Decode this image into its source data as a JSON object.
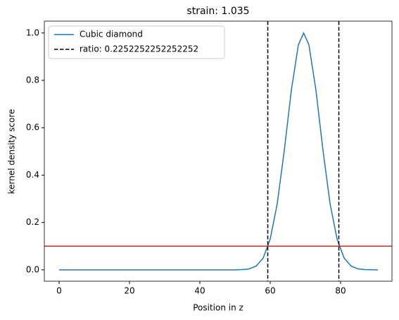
{
  "chart_data": {
    "type": "line",
    "title": "strain: 1.035",
    "x_label": "Position in z",
    "y_label": "kernel density score",
    "x": [
      0,
      10,
      20,
      30,
      40,
      45,
      50,
      52,
      54,
      56,
      58,
      60,
      62,
      64,
      66,
      68,
      69.5,
      71,
      73,
      75,
      77,
      79,
      81,
      83,
      85,
      87,
      90.6
    ],
    "series": [
      {
        "name": "Cubic diamond",
        "color": "#1f77b4",
        "values": [
          0,
          0,
          0,
          0,
          0,
          0,
          0,
          0.001,
          0.004,
          0.016,
          0.05,
          0.13,
          0.28,
          0.504,
          0.758,
          0.95,
          1.0,
          0.95,
          0.758,
          0.504,
          0.28,
          0.13,
          0.05,
          0.016,
          0.004,
          0.001,
          0
        ]
      }
    ],
    "vlines": {
      "name": "ratio: 0.2252252252252252",
      "color": "#000000",
      "values": [
        59.3,
        79.5
      ]
    },
    "hline": {
      "value": 0.1,
      "color": "#d62728"
    },
    "xlim": [
      -4.2,
      94.6
    ],
    "ylim": [
      -0.048,
      1.05
    ],
    "xticks": [
      0,
      20,
      40,
      60,
      80
    ],
    "yticks": [
      {
        "value": 0,
        "label": "0.0"
      },
      {
        "value": 0.2,
        "label": "0.2"
      },
      {
        "value": 0.4,
        "label": "0.4"
      },
      {
        "value": 0.6,
        "label": "0.6"
      },
      {
        "value": 0.8,
        "label": "0.8"
      },
      {
        "value": 1.0,
        "label": "1.0"
      }
    ],
    "legend": "upper left"
  }
}
